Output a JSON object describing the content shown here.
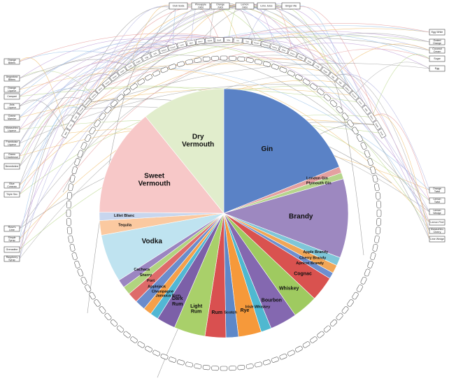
{
  "chart_data": {
    "type": "pie",
    "slices": [
      {
        "label": "Gin",
        "value": 70,
        "color": "#5a82c6"
      },
      {
        "label": "London Gin",
        "value": 3,
        "color": "#e4a0a0"
      },
      {
        "label": "Plymouth Gin",
        "value": 3,
        "color": "#b6d58c"
      },
      {
        "label": "Brandy",
        "value": 38,
        "color": "#9d88c0"
      },
      {
        "label": "Apple Brandy",
        "value": 4,
        "color": "#7fc6d8"
      },
      {
        "label": "Cherry Brandy",
        "value": 4,
        "color": "#f1a657"
      },
      {
        "label": "Apricot Brandy",
        "value": 3,
        "color": "#6d8fcf"
      },
      {
        "label": "Cognac",
        "value": 12,
        "color": "#d9524f"
      },
      {
        "label": "Whiskey",
        "value": 12,
        "color": "#9fca60"
      },
      {
        "label": "Bourbon",
        "value": 13,
        "color": "#8468b0"
      },
      {
        "label": "Irish Whiskey",
        "value": 5,
        "color": "#4fb8d0"
      },
      {
        "label": "Rye",
        "value": 11,
        "color": "#f6993a"
      },
      {
        "label": "Scotch",
        "value": 6,
        "color": "#5e88c8"
      },
      {
        "label": "Rum",
        "value": 10,
        "color": "#d95050"
      },
      {
        "label": "Light Rum",
        "value": 15,
        "color": "#a9d06a"
      },
      {
        "label": "Dark Rum",
        "value": 9,
        "color": "#7c60a8"
      },
      {
        "label": "Jamaica Rum",
        "value": 4,
        "color": "#52b7d4"
      },
      {
        "label": "Champagne",
        "value": 4,
        "color": "#f5a04a"
      },
      {
        "label": "Applejack",
        "value": 5,
        "color": "#6b8ccc"
      },
      {
        "label": "Port",
        "value": 5,
        "color": "#de6b6a"
      },
      {
        "label": "Sherry",
        "value": 4,
        "color": "#b1d47f"
      },
      {
        "label": "Cachaca",
        "value": 4,
        "color": "#9b85c1"
      },
      {
        "label": "Vodka",
        "value": 23,
        "color": "#bfe3f0"
      },
      {
        "label": "Tequila",
        "value": 7,
        "color": "#fbc9a0"
      },
      {
        "label": "Lillet Blanc",
        "value": 4,
        "color": "#c8d6ee"
      },
      {
        "label": "Sweet Vermouth",
        "value": 52,
        "color": "#f7c8c8"
      },
      {
        "label": "Dry Vermouth",
        "value": 40,
        "color": "#e1edcc"
      }
    ]
  },
  "ring_labels": [
    "Gin",
    "Gin",
    "Gin",
    "Gin",
    "Gin",
    "Gin",
    "Gin",
    "Gin",
    "Gin",
    "Gin",
    "Brandy",
    "Brandy",
    "Brandy",
    "Brandy",
    "Brandy",
    "Cognac",
    "Cognac",
    "Whiskey",
    "Whiskey",
    "Bourbon",
    "Bourbon",
    "Rye",
    "Rye",
    "Scotch",
    "Rum",
    "Rum",
    "Light Rum",
    "Light Rum",
    "Dark Rum",
    "Champagne",
    "Port",
    "Sherry",
    "Vodka",
    "Vodka",
    "Vodka",
    "Tequila",
    "Sweet Vermouth",
    "Sweet Vermouth",
    "Sweet Vermouth",
    "Dry Vermouth"
  ],
  "ingredients_top": [
    "Club Soda",
    "Pineapple Juice",
    "Orange Juice",
    "Lemon Juice",
    "Lime Juice",
    "Ginger Ale"
  ],
  "ingredients_left": [
    "Orange Bitters",
    "Angostura Bitters",
    "Orange Liqueur",
    "Campari",
    "Anis Liqueur",
    "Creme Marnier",
    "Maraschino Liqueur",
    "Framboise Liqueur",
    "Green Chartreuse",
    "Benedictine",
    "Blue Curacao",
    "Triple Sec",
    "Rose's Lime",
    "Simple Syrup",
    "Grenadine",
    "Raspberry Syrup"
  ],
  "ingredients_right": [
    "Egg White",
    "Grated Orange",
    "Coconut Cream",
    "Sugar",
    "Egg",
    "Orange Twist",
    "Lemon Twist",
    "Lemon Wedge",
    "Lemon Peel",
    "Maraschino Cherry",
    "Lime Wedge"
  ],
  "arc_labels": [
    "Mint",
    "Ice",
    "Salt",
    "Cream",
    "Nutmeg",
    "Honey",
    "Olive",
    "Onion",
    "Water",
    "Soda",
    "Cola",
    "Sugar",
    "Egg",
    "Milk",
    "Bitters",
    "Peach",
    "Lime",
    "Mint",
    "Berry",
    "Apple",
    "Basil"
  ]
}
